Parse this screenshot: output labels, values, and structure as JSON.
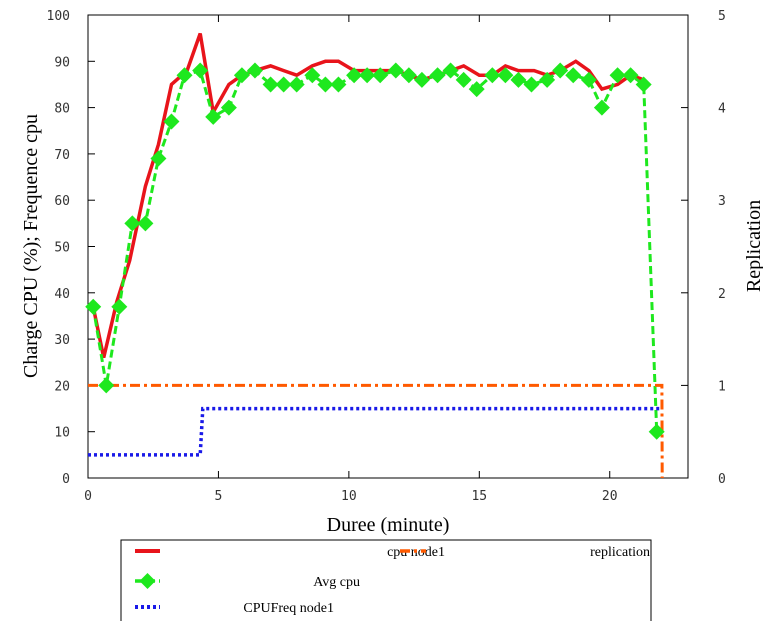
{
  "chart_data": {
    "type": "line",
    "xlabel": "Duree (minute)",
    "ylabel": "Charge CPU (%); Frequence cpu",
    "y2label": "Replication",
    "xlim": [
      0,
      23
    ],
    "ylim": [
      0,
      100
    ],
    "y2lim": [
      0,
      5
    ],
    "x_ticks": [
      "0",
      "5",
      "10",
      "15",
      "20"
    ],
    "y_ticks": [
      "0",
      "10",
      "20",
      "30",
      "40",
      "50",
      "60",
      "70",
      "80",
      "90",
      "100"
    ],
    "y2_ticks": [
      "0",
      "1",
      "2",
      "3",
      "4",
      "5"
    ],
    "grid": false,
    "legend_position": "bottom",
    "series": [
      {
        "name": "cpu node1",
        "color": "#e8141b",
        "style": "solid",
        "axis": "left",
        "x": [
          0.2,
          0.6,
          1.1,
          1.6,
          2.2,
          2.7,
          3.2,
          3.8,
          4.3,
          4.8,
          5.4,
          5.9,
          6.4,
          7.0,
          7.5,
          8.0,
          8.6,
          9.1,
          9.6,
          10.2,
          10.7,
          11.2,
          11.8,
          12.3,
          12.8,
          13.4,
          13.9,
          14.4,
          15.0,
          15.5,
          16.0,
          16.5,
          17.1,
          17.6,
          18.1,
          18.7,
          19.2,
          19.7,
          20.3,
          20.8,
          21.3
        ],
        "values": [
          37,
          26,
          38,
          47,
          63,
          72,
          85,
          88,
          96,
          79,
          85,
          87,
          88,
          89,
          88,
          87,
          89,
          90,
          90,
          88,
          88,
          88,
          88,
          87,
          86,
          87,
          88,
          89,
          87,
          87,
          89,
          88,
          88,
          87,
          88,
          90,
          88,
          84,
          85,
          87,
          86
        ]
      },
      {
        "name": "Avg cpu",
        "color": "#1ee81e",
        "style": "dashed",
        "marker": "diamond",
        "axis": "left",
        "x": [
          0.2,
          0.7,
          1.2,
          1.7,
          2.2,
          2.7,
          3.2,
          3.7,
          4.3,
          4.8,
          5.4,
          5.9,
          6.4,
          7.0,
          7.5,
          8.0,
          8.6,
          9.1,
          9.6,
          10.2,
          10.7,
          11.2,
          11.8,
          12.3,
          12.8,
          13.4,
          13.9,
          14.4,
          14.9,
          15.5,
          16.0,
          16.5,
          17.0,
          17.6,
          18.1,
          18.6,
          19.2,
          19.7,
          20.3,
          20.8,
          21.3,
          21.8
        ],
        "values": [
          37,
          20,
          37,
          55,
          55,
          69,
          77,
          87,
          88,
          78,
          80,
          87,
          88,
          85,
          85,
          85,
          87,
          85,
          85,
          87,
          87,
          87,
          88,
          87,
          86,
          87,
          88,
          86,
          84,
          87,
          87,
          86,
          85,
          86,
          88,
          87,
          86,
          80,
          87,
          87,
          85,
          10
        ]
      },
      {
        "name": "CPUFreq node1",
        "color": "#1a1ae8",
        "style": "dotted",
        "axis": "left",
        "x": [
          0,
          4.3,
          4.4,
          22.0
        ],
        "values": [
          5,
          5,
          15,
          15
        ]
      },
      {
        "name": "replication",
        "color": "#ff5a00",
        "style": "dash-dot",
        "axis": "right",
        "x": [
          0,
          22.0,
          22.01
        ],
        "values": [
          1,
          1,
          0
        ]
      }
    ]
  }
}
